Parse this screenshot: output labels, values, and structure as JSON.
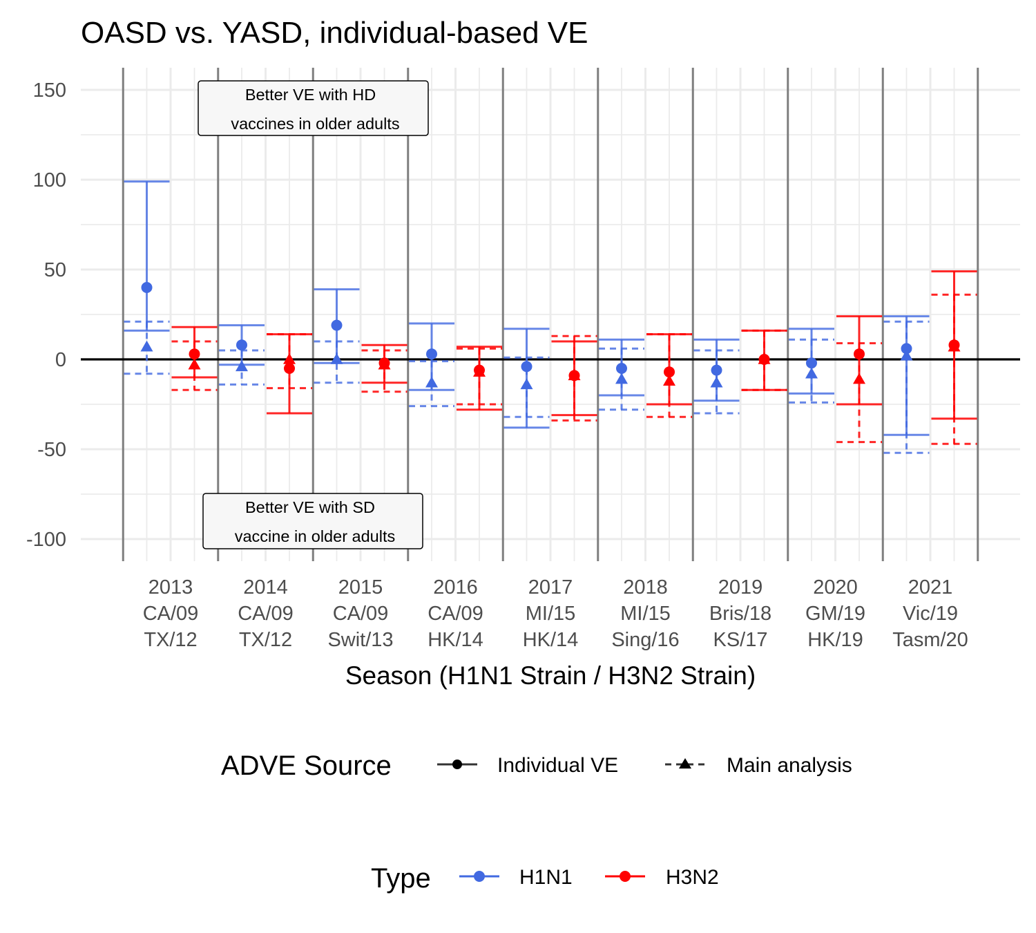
{
  "chart_data": {
    "type": "errorbar",
    "title": "OASD vs. YASD, individual-based VE",
    "xlabel": "Season (H1N1 Strain / H3N2 Strain)",
    "ylabel": "",
    "ylim": [
      -112,
      162
    ],
    "yticks": [
      150,
      100,
      50,
      0,
      -50,
      -100
    ],
    "grid": true,
    "reference_line": 0,
    "categories": [
      {
        "season": "2013",
        "h1": "CA/09",
        "h3": "TX/12"
      },
      {
        "season": "2014",
        "h1": "CA/09",
        "h3": "TX/12"
      },
      {
        "season": "2015",
        "h1": "CA/09",
        "h3": "Swit/13"
      },
      {
        "season": "2016",
        "h1": "CA/09",
        "h3": "HK/14"
      },
      {
        "season": "2017",
        "h1": "MI/15",
        "h3": "HK/14"
      },
      {
        "season": "2018",
        "h1": "MI/15",
        "h3": "Sing/16"
      },
      {
        "season": "2019",
        "h1": "Bris/18",
        "h3": "KS/17"
      },
      {
        "season": "2020",
        "h1": "GM/19",
        "h3": "HK/19"
      },
      {
        "season": "2021",
        "h1": "Vic/19",
        "h3": "Tasm/20"
      }
    ],
    "series": [
      {
        "type": "H1N1",
        "source": "Individual VE",
        "estimate": [
          40,
          8,
          19,
          3,
          -4,
          -5,
          -6,
          -2,
          6
        ],
        "lower": [
          16,
          -3,
          -2,
          -17,
          -38,
          -20,
          -23,
          -19,
          -42
        ],
        "upper": [
          99,
          19,
          39,
          20,
          17,
          11,
          11,
          17,
          24
        ]
      },
      {
        "type": "H1N1",
        "source": "Main analysis",
        "estimate": [
          7,
          -4,
          0,
          -13,
          -14,
          -11,
          -13,
          -8,
          2
        ],
        "lower": [
          -8,
          -14,
          -13,
          -26,
          -32,
          -28,
          -30,
          -24,
          -52
        ],
        "upper": [
          21,
          5,
          10,
          -1,
          1,
          6,
          5,
          11,
          21
        ]
      },
      {
        "type": "H3N2",
        "source": "Individual VE",
        "estimate": [
          3,
          -5,
          -2,
          -6,
          -9,
          -7,
          0,
          3,
          8
        ],
        "lower": [
          -10,
          -30,
          -13,
          -28,
          -31,
          -25,
          -17,
          -25,
          -33
        ],
        "upper": [
          18,
          14,
          8,
          7,
          10,
          14,
          16,
          24,
          49
        ]
      },
      {
        "type": "H3N2",
        "source": "Main analysis",
        "estimate": [
          -3,
          0,
          -3,
          -7,
          -9,
          -12,
          0,
          -11,
          7
        ],
        "lower": [
          -17,
          -16,
          -18,
          -25,
          -34,
          -32,
          -17,
          -46,
          -47
        ],
        "upper": [
          10,
          14,
          5,
          6,
          13,
          14,
          16,
          9,
          36
        ]
      }
    ],
    "annotations": [
      {
        "lines": [
          "Better VE with HD",
          "vaccines in older adults"
        ]
      },
      {
        "lines": [
          "Better VE with SD",
          "vaccine in older adults"
        ]
      }
    ],
    "legends": [
      {
        "title": "ADVE Source",
        "items": [
          "Individual VE",
          "Main analysis"
        ]
      },
      {
        "title": "Type",
        "items": [
          "H1N1",
          "H3N2"
        ]
      }
    ],
    "colors": {
      "H1N1": "#4169E1",
      "H3N2": "#FF0000",
      "separator": "#7f7f7f",
      "grid": "#ebebeb",
      "zero": "#000000"
    }
  }
}
